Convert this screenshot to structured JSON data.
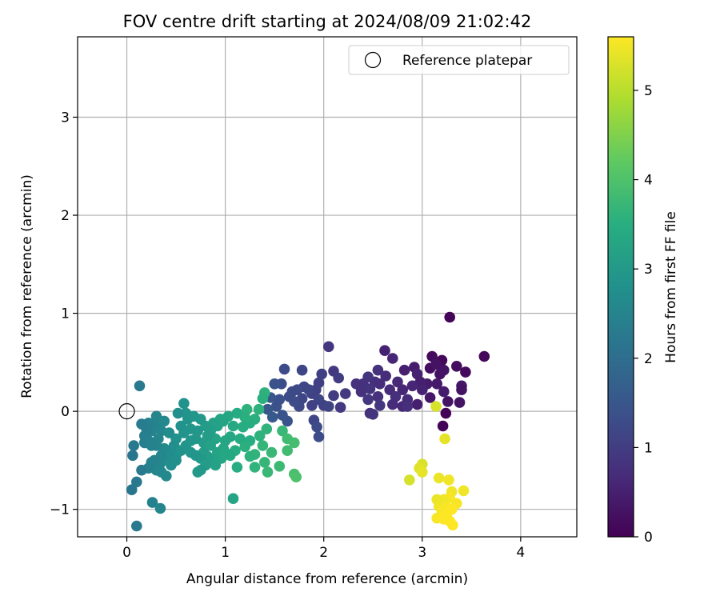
{
  "chart_data": {
    "type": "scatter",
    "title": "FOV centre drift starting at 2024/08/09 21:02:42",
    "xlabel": "Angular distance from reference (arcmin)",
    "ylabel": "Rotation from reference (arcmin)",
    "xlim": [
      -0.5,
      4.57
    ],
    "ylim": [
      -1.28,
      3.82
    ],
    "xticks": [
      0,
      1,
      2,
      3,
      4
    ],
    "xtick_labels": [
      "0",
      "1",
      "2",
      "3",
      "4"
    ],
    "yticks": [
      -1,
      0,
      1,
      2,
      3
    ],
    "ytick_labels": [
      "−1",
      "0",
      "1",
      "2",
      "3"
    ],
    "grid": true,
    "legend": {
      "placement": "top-right",
      "entries": [
        "Reference platepar"
      ]
    },
    "reference_point": {
      "name": "Reference platepar",
      "x": 0,
      "y": 0
    },
    "colorbar": {
      "label": "Hours from first FF file",
      "range": [
        0,
        5.6
      ],
      "ticks": [
        0,
        1,
        2,
        3,
        4,
        5
      ],
      "tick_labels": [
        "0",
        "1",
        "2",
        "3",
        "4",
        "5"
      ],
      "colormap": "viridis"
    },
    "points": [
      [
        3.28,
        0.96,
        0.05
      ],
      [
        3.63,
        0.56,
        0.1
      ],
      [
        3.1,
        0.56,
        0.15
      ],
      [
        3.2,
        0.52,
        0.1
      ],
      [
        3.35,
        0.46,
        0.2
      ],
      [
        3.44,
        0.4,
        0.15
      ],
      [
        3.08,
        0.44,
        0.2
      ],
      [
        3.14,
        0.48,
        0.3
      ],
      [
        3.18,
        0.38,
        0.25
      ],
      [
        3.22,
        0.42,
        0.3
      ],
      [
        3.4,
        0.26,
        0.35
      ],
      [
        3.4,
        0.22,
        0.3
      ],
      [
        3.15,
        0.28,
        0.4
      ],
      [
        3.22,
        0.2,
        0.45
      ],
      [
        3.26,
        0.1,
        0.3
      ],
      [
        3.38,
        0.09,
        0.3
      ],
      [
        3.24,
        -0.02,
        0.05
      ],
      [
        3.21,
        -0.15,
        0.05
      ],
      [
        3.05,
        0.28,
        0.45
      ],
      [
        3.08,
        0.14,
        0.35
      ],
      [
        2.92,
        0.45,
        0.45
      ],
      [
        2.95,
        0.38,
        0.55
      ],
      [
        2.98,
        0.3,
        0.5
      ],
      [
        3.0,
        0.22,
        0.55
      ],
      [
        2.9,
        0.26,
        0.6
      ],
      [
        2.95,
        0.07,
        0.5
      ],
      [
        2.82,
        0.42,
        0.5
      ],
      [
        2.8,
        0.22,
        0.6
      ],
      [
        2.75,
        0.3,
        0.65
      ],
      [
        2.7,
        0.54,
        0.6
      ],
      [
        2.62,
        0.62,
        0.55
      ],
      [
        2.63,
        0.36,
        0.7
      ],
      [
        2.57,
        0.28,
        0.7
      ],
      [
        2.67,
        0.22,
        0.7
      ],
      [
        2.73,
        0.15,
        0.75
      ],
      [
        2.85,
        0.12,
        0.7
      ],
      [
        2.7,
        0.07,
        0.7
      ],
      [
        2.8,
        0.05,
        0.65
      ],
      [
        2.85,
        0.05,
        0.75
      ],
      [
        2.55,
        0.42,
        0.8
      ],
      [
        2.52,
        0.3,
        0.75
      ],
      [
        2.45,
        0.35,
        0.85
      ],
      [
        2.4,
        0.28,
        0.8
      ],
      [
        2.47,
        0.23,
        0.85
      ],
      [
        2.55,
        0.15,
        0.8
      ],
      [
        2.45,
        0.12,
        0.9
      ],
      [
        2.57,
        0.06,
        0.9
      ],
      [
        2.47,
        -0.02,
        0.8
      ],
      [
        2.5,
        -0.03,
        0.85
      ],
      [
        2.33,
        0.28,
        0.8
      ],
      [
        2.38,
        0.2,
        0.8
      ],
      [
        2.05,
        0.66,
        0.9
      ],
      [
        2.1,
        0.41,
        0.95
      ],
      [
        2.15,
        0.34,
        1.0
      ],
      [
        2.22,
        0.18,
        0.95
      ],
      [
        2.17,
        0.04,
        0.95
      ],
      [
        2.1,
        0.16,
        1.0
      ],
      [
        1.98,
        0.38,
        1.05
      ],
      [
        1.95,
        0.29,
        1.05
      ],
      [
        1.92,
        0.22,
        1.1
      ],
      [
        1.88,
        0.18,
        1.1
      ],
      [
        1.95,
        0.12,
        1.15
      ],
      [
        2.0,
        0.06,
        1.1
      ],
      [
        2.05,
        0.05,
        1.15
      ],
      [
        1.88,
        0.06,
        1.1
      ],
      [
        1.85,
        0.22,
        1.15
      ],
      [
        1.8,
        0.25,
        1.2
      ],
      [
        1.78,
        0.13,
        1.2
      ],
      [
        1.75,
        0.05,
        1.25
      ],
      [
        1.78,
        0.42,
        1.2
      ],
      [
        1.73,
        0.22,
        1.25
      ],
      [
        1.68,
        0.2,
        1.25
      ],
      [
        1.65,
        0.15,
        1.3
      ],
      [
        1.7,
        0.1,
        1.3
      ],
      [
        1.9,
        -0.09,
        1.2
      ],
      [
        1.93,
        -0.16,
        1.3
      ],
      [
        1.95,
        -0.26,
        1.3
      ],
      [
        1.6,
        0.43,
        1.3
      ],
      [
        1.57,
        0.28,
        1.35
      ],
      [
        1.55,
        0.12,
        1.4
      ],
      [
        1.52,
        0.05,
        1.4
      ],
      [
        1.58,
        -0.04,
        1.45
      ],
      [
        1.63,
        -0.1,
        1.45
      ],
      [
        1.5,
        0.28,
        1.45
      ],
      [
        1.46,
        0.14,
        1.5
      ],
      [
        1.43,
        0.02,
        1.55
      ],
      [
        1.48,
        -0.06,
        1.6
      ],
      [
        1.4,
        0.19,
        3.6
      ],
      [
        1.38,
        0.13,
        3.55
      ],
      [
        1.34,
        0.02,
        3.6
      ],
      [
        1.3,
        -0.08,
        3.55
      ],
      [
        1.25,
        -0.12,
        3.5
      ],
      [
        1.22,
        0.02,
        3.6
      ],
      [
        1.2,
        -0.06,
        3.55
      ],
      [
        1.18,
        -0.16,
        3.5
      ],
      [
        1.12,
        -0.02,
        3.45
      ],
      [
        1.08,
        -0.15,
        3.4
      ],
      [
        1.05,
        -0.26,
        3.35
      ],
      [
        1.15,
        -0.28,
        3.45
      ],
      [
        1.25,
        -0.3,
        3.5
      ],
      [
        1.35,
        -0.25,
        3.6
      ],
      [
        1.42,
        -0.18,
        3.65
      ],
      [
        1.38,
        -0.35,
        3.7
      ],
      [
        1.3,
        -0.44,
        3.65
      ],
      [
        1.25,
        -0.46,
        3.6
      ],
      [
        1.2,
        -0.36,
        3.55
      ],
      [
        1.1,
        -0.4,
        3.45
      ],
      [
        1.05,
        -0.45,
        3.4
      ],
      [
        1.12,
        -0.57,
        3.5
      ],
      [
        1.3,
        -0.57,
        3.65
      ],
      [
        1.4,
        -0.52,
        3.7
      ],
      [
        1.43,
        -0.62,
        3.75
      ],
      [
        1.47,
        -0.42,
        3.75
      ],
      [
        1.55,
        -0.56,
        3.8
      ],
      [
        1.58,
        -0.2,
        3.75
      ],
      [
        1.63,
        -0.28,
        3.85
      ],
      [
        1.63,
        -0.4,
        3.85
      ],
      [
        1.7,
        -0.32,
        3.9
      ],
      [
        1.7,
        -0.64,
        3.95
      ],
      [
        1.72,
        -0.67,
        4.0
      ],
      [
        1.08,
        -0.89,
        3.3
      ],
      [
        1.03,
        -0.05,
        3.35
      ],
      [
        0.98,
        -0.1,
        3.25
      ],
      [
        0.95,
        -0.08,
        3.3
      ],
      [
        0.92,
        -0.15,
        3.2
      ],
      [
        0.88,
        -0.12,
        3.2
      ],
      [
        0.85,
        -0.2,
        3.15
      ],
      [
        0.9,
        -0.28,
        3.25
      ],
      [
        0.82,
        -0.25,
        3.1
      ],
      [
        0.8,
        -0.15,
        3.1
      ],
      [
        0.78,
        -0.32,
        3.1
      ],
      [
        0.75,
        -0.08,
        3.05
      ],
      [
        0.72,
        -0.2,
        3.0
      ],
      [
        0.7,
        -0.28,
        3.0
      ],
      [
        0.85,
        -0.35,
        3.2
      ],
      [
        0.92,
        -0.42,
        3.25
      ],
      [
        0.96,
        -0.48,
        3.3
      ],
      [
        0.88,
        -0.5,
        3.2
      ],
      [
        0.82,
        -0.46,
        3.15
      ],
      [
        0.78,
        -0.42,
        3.1
      ],
      [
        0.75,
        -0.48,
        3.05
      ],
      [
        0.8,
        -0.55,
        3.1
      ],
      [
        0.9,
        -0.55,
        3.2
      ],
      [
        0.75,
        -0.6,
        3.0
      ],
      [
        0.72,
        -0.62,
        3.05
      ],
      [
        0.65,
        -0.18,
        2.95
      ],
      [
        0.62,
        -0.08,
        2.9
      ],
      [
        0.6,
        -0.02,
        2.9
      ],
      [
        0.58,
        0.08,
        2.85
      ],
      [
        0.55,
        -0.15,
        2.85
      ],
      [
        0.52,
        -0.02,
        2.8
      ],
      [
        0.5,
        -0.28,
        2.85
      ],
      [
        0.48,
        -0.35,
        2.8
      ],
      [
        0.45,
        -0.4,
        2.75
      ],
      [
        0.5,
        -0.45,
        2.8
      ],
      [
        0.55,
        -0.4,
        2.85
      ],
      [
        0.6,
        -0.35,
        2.9
      ],
      [
        0.65,
        -0.42,
        2.95
      ],
      [
        0.7,
        -0.45,
        2.95
      ],
      [
        0.42,
        -0.45,
        2.7
      ],
      [
        0.4,
        -0.5,
        2.7
      ],
      [
        0.45,
        -0.55,
        2.75
      ],
      [
        0.5,
        -0.5,
        2.8
      ],
      [
        0.38,
        -0.38,
        2.65
      ],
      [
        0.35,
        -0.45,
        2.6
      ],
      [
        0.33,
        -0.55,
        2.6
      ],
      [
        0.3,
        -0.6,
        2.55
      ],
      [
        0.35,
        -0.62,
        2.6
      ],
      [
        0.4,
        -0.66,
        2.65
      ],
      [
        0.28,
        -0.5,
        2.5
      ],
      [
        0.25,
        -0.52,
        2.5
      ],
      [
        0.22,
        -0.58,
        2.45
      ],
      [
        0.3,
        -0.35,
        2.55
      ],
      [
        0.32,
        -0.28,
        2.55
      ],
      [
        0.35,
        -0.2,
        2.6
      ],
      [
        0.33,
        -0.1,
        2.6
      ],
      [
        0.3,
        -0.05,
        2.55
      ],
      [
        0.28,
        -0.15,
        2.5
      ],
      [
        0.25,
        -0.2,
        2.5
      ],
      [
        0.22,
        -0.12,
        2.45
      ],
      [
        0.2,
        -0.18,
        2.4
      ],
      [
        0.18,
        -0.25,
        2.4
      ],
      [
        0.15,
        -0.13,
        2.35
      ],
      [
        0.18,
        -0.32,
        2.4
      ],
      [
        0.22,
        -0.3,
        2.45
      ],
      [
        0.25,
        -0.35,
        2.5
      ],
      [
        0.15,
        -0.6,
        2.3
      ],
      [
        0.1,
        -0.72,
        2.25
      ],
      [
        0.05,
        -0.8,
        2.2
      ],
      [
        0.26,
        -0.93,
        2.45
      ],
      [
        0.34,
        -0.99,
        2.55
      ],
      [
        0.1,
        -1.17,
        2.3
      ],
      [
        0.06,
        -0.45,
        2.2
      ],
      [
        0.07,
        -0.35,
        2.25
      ],
      [
        0.13,
        0.26,
        2.3
      ],
      [
        1.0,
        -0.3,
        3.3
      ],
      [
        0.98,
        -0.38,
        3.3
      ],
      [
        0.65,
        -0.3,
        2.95
      ],
      [
        0.58,
        -0.22,
        2.9
      ],
      [
        0.68,
        -0.05,
        2.95
      ],
      [
        0.43,
        -0.22,
        2.7
      ],
      [
        0.38,
        -0.1,
        2.65
      ],
      [
        1.0,
        -0.42,
        3.35
      ],
      [
        3.14,
        0.05,
        5.3
      ],
      [
        3.23,
        -0.28,
        5.4
      ],
      [
        3.0,
        -0.54,
        5.3
      ],
      [
        2.97,
        -0.58,
        5.35
      ],
      [
        3.0,
        -0.62,
        5.4
      ],
      [
        2.87,
        -0.7,
        5.25
      ],
      [
        3.17,
        -0.68,
        5.45
      ],
      [
        3.27,
        -0.7,
        5.5
      ],
      [
        3.42,
        -0.81,
        5.5
      ],
      [
        3.3,
        -0.82,
        5.5
      ],
      [
        3.28,
        -0.88,
        5.55
      ],
      [
        3.22,
        -0.9,
        5.5
      ],
      [
        3.15,
        -0.9,
        5.45
      ],
      [
        3.35,
        -0.94,
        5.55
      ],
      [
        3.17,
        -0.97,
        5.5
      ],
      [
        3.22,
        -1.0,
        5.55
      ],
      [
        3.25,
        -0.98,
        5.55
      ],
      [
        3.3,
        -1.0,
        5.6
      ],
      [
        3.2,
        -1.04,
        5.55
      ],
      [
        3.15,
        -1.09,
        5.55
      ],
      [
        3.22,
        -1.1,
        5.6
      ],
      [
        3.28,
        -1.12,
        5.6
      ],
      [
        3.31,
        -1.16,
        5.6
      ],
      [
        3.25,
        -1.05,
        5.6
      ]
    ]
  }
}
